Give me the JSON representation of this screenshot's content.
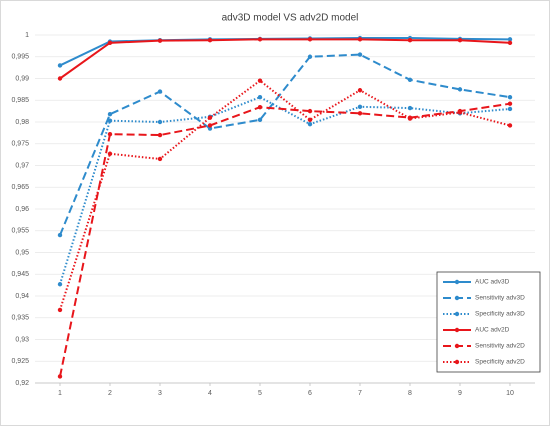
{
  "chart_data": {
    "type": "line",
    "title": "adv3D model VS adv2D model",
    "x": [
      1,
      2,
      3,
      4,
      5,
      6,
      7,
      8,
      9,
      10
    ],
    "xlim": [
      0.5,
      10.5
    ],
    "xticks": [
      1,
      2,
      3,
      4,
      5,
      6,
      7,
      8,
      9,
      10
    ],
    "ylim": [
      0.92,
      1
    ],
    "yticks": [
      {
        "value": 0.92,
        "label": "0,92"
      },
      {
        "value": 0.925,
        "label": "0,925"
      },
      {
        "value": 0.93,
        "label": "0,93"
      },
      {
        "value": 0.935,
        "label": "0,935"
      },
      {
        "value": 0.94,
        "label": "0,94"
      },
      {
        "value": 0.945,
        "label": "0,945"
      },
      {
        "value": 0.95,
        "label": "0,95"
      },
      {
        "value": 0.955,
        "label": "0,955"
      },
      {
        "value": 0.96,
        "label": "0,96"
      },
      {
        "value": 0.965,
        "label": "0,965"
      },
      {
        "value": 0.97,
        "label": "0,97"
      },
      {
        "value": 0.975,
        "label": "0,975"
      },
      {
        "value": 0.98,
        "label": "0,98"
      },
      {
        "value": 0.985,
        "label": "0,985"
      },
      {
        "value": 0.99,
        "label": "0,99"
      },
      {
        "value": 0.995,
        "label": "0,995"
      },
      1
    ],
    "grid": true,
    "legend": "lower right",
    "series": [
      {
        "name": "AUC adv3D",
        "color": "#2e8bcc",
        "dash": "solid",
        "values": [
          0.993,
          0.9985,
          0.9988,
          0.999,
          0.9991,
          0.9992,
          0.9993,
          0.9993,
          0.9991,
          0.999
        ]
      },
      {
        "name": "Sensitivity adv3D",
        "color": "#2e8bcc",
        "dash": "dashed",
        "values": [
          0.954,
          0.9818,
          0.987,
          0.9785,
          0.9805,
          0.995,
          0.9955,
          0.9897,
          0.9875,
          0.9857
        ]
      },
      {
        "name": "Specificity adv3D",
        "color": "#2e8bcc",
        "dash": "dotted",
        "values": [
          0.9427,
          0.9803,
          0.98,
          0.9812,
          0.9857,
          0.9795,
          0.9835,
          0.9832,
          0.982,
          0.983
        ]
      },
      {
        "name": "AUC adv2D",
        "color": "#e8161b",
        "dash": "solid",
        "values": [
          0.99,
          0.9982,
          0.9987,
          0.9988,
          0.999,
          0.999,
          0.999,
          0.9988,
          0.9988,
          0.9982
        ]
      },
      {
        "name": "Sensitivity adv2D",
        "color": "#e8161b",
        "dash": "dashed",
        "values": [
          0.9215,
          0.9772,
          0.977,
          0.9792,
          0.9834,
          0.9825,
          0.982,
          0.981,
          0.9825,
          0.9842
        ]
      },
      {
        "name": "Specificity adv2D",
        "color": "#e8161b",
        "dash": "dotted",
        "values": [
          0.9368,
          0.9727,
          0.9715,
          0.981,
          0.9895,
          0.9805,
          0.9873,
          0.9808,
          0.9822,
          0.9792
        ]
      }
    ]
  }
}
